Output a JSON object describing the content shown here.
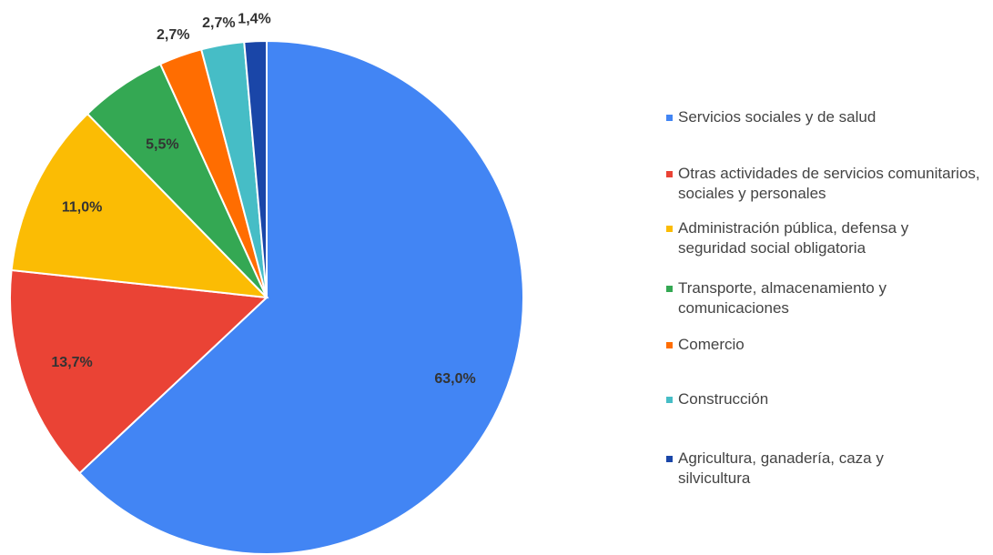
{
  "chart_data": {
    "type": "pie",
    "categories": [
      "Servicios sociales y de salud",
      "Otras actividades de servicios comunitarios, sociales y personales",
      "Administración pública, defensa y seguridad social obligatoria",
      "Transporte, almacenamiento y comunicaciones",
      "Comercio",
      "Construcción",
      "Agricultura, ganadería, caza y silvicultura"
    ],
    "values": [
      63.0,
      13.7,
      11.0,
      5.5,
      2.7,
      2.7,
      1.4
    ],
    "value_labels": [
      "63,0%",
      "13,7%",
      "11,0%",
      "5,5%",
      "2,7%",
      "2,7%",
      "1,4%"
    ],
    "colors": [
      "#4285f4",
      "#ea4335",
      "#fbbc04",
      "#34a853",
      "#ff6d01",
      "#46bdc6",
      "#1a46a8"
    ],
    "legend": "right"
  }
}
